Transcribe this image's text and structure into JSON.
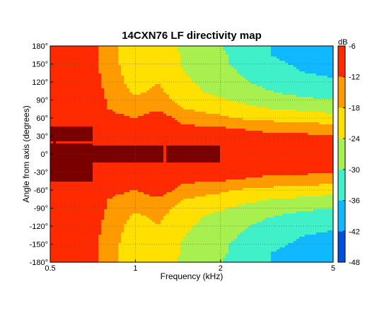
{
  "chart_data": {
    "type": "heatmap",
    "title": "14CXN76 LF directivity map",
    "xlabel": "Frequency (kHz)",
    "ylabel": "Angle from axis (degrees)",
    "x_scale": "log",
    "xlim": [
      0.5,
      5
    ],
    "ylim": [
      -180,
      180
    ],
    "x_ticks": [
      {
        "value": 0.5,
        "label": "0.5"
      },
      {
        "value": 1,
        "label": "1"
      },
      {
        "value": 2,
        "label": "2"
      },
      {
        "value": 5,
        "label": "5"
      }
    ],
    "y_ticks": [
      {
        "value": 180,
        "label": "180°"
      },
      {
        "value": 150,
        "label": "150°"
      },
      {
        "value": 120,
        "label": "120°"
      },
      {
        "value": 90,
        "label": "90°"
      },
      {
        "value": 60,
        "label": "60°"
      },
      {
        "value": 30,
        "label": "30°"
      },
      {
        "value": 0,
        "label": "0°"
      },
      {
        "value": -30,
        "label": "-30°"
      },
      {
        "value": -60,
        "label": "-60°"
      },
      {
        "value": -90,
        "label": "-90°"
      },
      {
        "value": -120,
        "label": "-120°"
      },
      {
        "value": -150,
        "label": "-150°"
      },
      {
        "value": -180,
        "label": "-180°"
      }
    ],
    "colorbar": {
      "unit_label": "dB",
      "range": [
        -48,
        -6
      ],
      "ticks": [
        {
          "value": -6,
          "label": "-6"
        },
        {
          "value": -12,
          "label": "-12"
        },
        {
          "value": -18,
          "label": "-18"
        },
        {
          "value": -24,
          "label": "-24"
        },
        {
          "value": -30,
          "label": "-30"
        },
        {
          "value": -36,
          "label": "-36"
        },
        {
          "value": -42,
          "label": "-42"
        },
        {
          "value": -48,
          "label": "-48"
        }
      ],
      "levels": [
        -48,
        -42,
        -36,
        -30,
        -24,
        -18,
        -12,
        -6
      ],
      "band_colors": [
        "#00008b",
        "#0050e0",
        "#10b8ff",
        "#40f0c8",
        "#a8f050",
        "#ffe000",
        "#ff9a00",
        "#ff2a00",
        "#7a0000"
      ]
    },
    "frequencies_khz": [
      0.5,
      0.6,
      0.7,
      0.8,
      1.0,
      1.2,
      1.5,
      2.0,
      2.5,
      3.0,
      4.0,
      5.0
    ],
    "angles_deg": [
      0,
      15,
      30,
      45,
      60,
      75,
      90,
      105,
      120,
      135,
      150,
      165,
      180
    ],
    "levels_db": [
      [
        -6,
        -6,
        -6,
        -6,
        -6,
        -6,
        -6,
        -6,
        -6,
        -6,
        -6,
        -6
      ],
      [
        -6,
        -6,
        -6,
        -6,
        -6,
        -6,
        -6,
        -6,
        -7,
        -7,
        -8,
        -8
      ],
      [
        -6,
        -6,
        -6,
        -7,
        -7,
        -7,
        -8,
        -9,
        -10,
        -11,
        -11,
        -12
      ],
      [
        -6,
        -6,
        -6,
        -8,
        -9,
        -8,
        -11,
        -12,
        -13,
        -14,
        -15,
        -16
      ],
      [
        -7,
        -7,
        -6,
        -10,
        -12,
        -8,
        -15,
        -17,
        -19,
        -20,
        -21,
        -22
      ],
      [
        -8,
        -7,
        -6,
        -12,
        -15,
        -13,
        -18,
        -20,
        -22,
        -24,
        -25,
        -26
      ],
      [
        -9,
        -7,
        -6,
        -13,
        -17,
        -15,
        -21,
        -23,
        -26,
        -28,
        -29,
        -30
      ],
      [
        -9,
        -8,
        -7,
        -14,
        -19,
        -17,
        -22,
        -26,
        -28,
        -30,
        -32,
        -33
      ],
      [
        -9,
        -8,
        -8,
        -15,
        -20,
        -18,
        -23,
        -27,
        -30,
        -32,
        -34,
        -35
      ],
      [
        -10,
        -9,
        -9,
        -15,
        -21,
        -19,
        -24,
        -28,
        -31,
        -34,
        -36,
        -37
      ],
      [
        -10,
        -9,
        -9,
        -16,
        -21,
        -19,
        -25,
        -29,
        -32,
        -35,
        -37,
        -38
      ],
      [
        -10,
        -10,
        -10,
        -16,
        -22,
        -20,
        -25,
        -29,
        -33,
        -36,
        -38,
        -39
      ],
      [
        -10,
        -10,
        -10,
        -16,
        -22,
        -20,
        -26,
        -30,
        -33,
        -36,
        -38,
        -40
      ]
    ]
  }
}
